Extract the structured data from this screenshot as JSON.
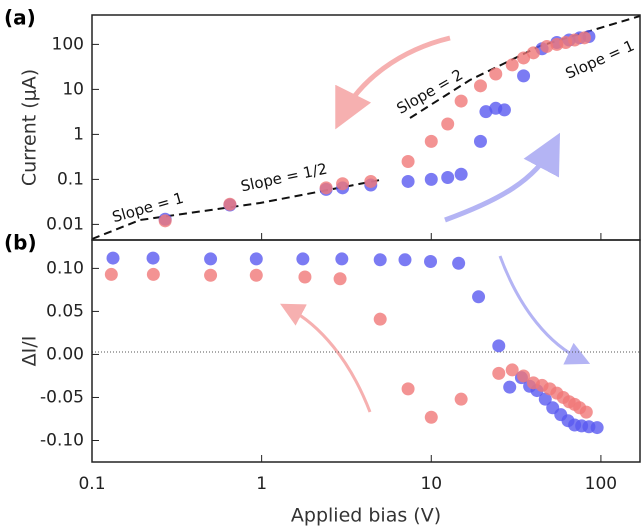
{
  "chart_data": [
    {
      "type": "scatter",
      "title": "(a)",
      "ylabel": "Current (μA)",
      "xscale": "log",
      "yscale": "log",
      "xlim": [
        0.1,
        170
      ],
      "xticks": [
        0.1,
        1,
        10,
        100
      ],
      "ylim": [
        0.0045,
        450
      ],
      "yticks": [
        0.01,
        0.1,
        1,
        10,
        100
      ],
      "annotations": [
        "Slope = 1",
        "Slope = 1/2",
        "Slope = 2",
        "Slope = 1"
      ],
      "series": [
        {
          "color": "#5a5af0",
          "x": [
            0.27,
            0.65,
            2.4,
            3.0,
            4.4,
            7.3,
            10,
            12.5,
            15,
            19.5,
            21,
            24,
            27,
            35,
            45,
            55,
            65,
            75,
            85
          ],
          "values": [
            0.013,
            0.027,
            0.06,
            0.065,
            0.075,
            0.09,
            0.1,
            0.11,
            0.13,
            0.7,
            3.2,
            3.8,
            3.5,
            20,
            80,
            110,
            125,
            140,
            150
          ]
        },
        {
          "color": "#f07878",
          "x": [
            0.27,
            0.65,
            2.4,
            3.0,
            4.4,
            7.3,
            10,
            12.5,
            15,
            19.5,
            24,
            30,
            35,
            40,
            48,
            55,
            62,
            70,
            80
          ],
          "values": [
            0.012,
            0.028,
            0.065,
            0.08,
            0.09,
            0.25,
            0.7,
            1.7,
            5.5,
            12,
            22,
            35,
            50,
            65,
            90,
            100,
            110,
            125,
            140
          ]
        }
      ]
    },
    {
      "type": "scatter",
      "title": "(b)",
      "ylabel": "ΔI/I",
      "xlabel": "Applied  bias (V)",
      "xscale": "log",
      "yscale": "linear",
      "xlim": [
        0.1,
        170
      ],
      "xticks": [
        0.1,
        1,
        10,
        100
      ],
      "ylim": [
        -0.125,
        0.133
      ],
      "yticks": [
        {
          "value": 0.1,
          "label": "0.10"
        },
        {
          "value": 0.05,
          "label": "0.05"
        },
        {
          "value": 0,
          "label": "0.00"
        },
        {
          "value": -0.05,
          "label": "-0.05"
        },
        {
          "value": -0.1,
          "label": "-0.10"
        }
      ],
      "series": [
        {
          "color": "#5a5af0",
          "x": [
            0.133,
            0.229,
            0.5,
            0.93,
            1.75,
            2.97,
            5.0,
            7.0,
            9.9,
            14.5,
            19,
            25,
            29,
            34,
            38,
            42,
            47,
            52,
            58,
            64,
            70,
            77,
            85,
            95
          ],
          "values": [
            0.112,
            0.112,
            0.111,
            0.111,
            0.111,
            0.111,
            0.11,
            0.11,
            0.108,
            0.106,
            0.067,
            0.01,
            -0.038,
            -0.027,
            -0.037,
            -0.042,
            -0.052,
            -0.062,
            -0.07,
            -0.077,
            -0.082,
            -0.083,
            -0.084,
            -0.085
          ]
        },
        {
          "color": "#f07878",
          "x": [
            0.13,
            0.23,
            0.5,
            0.93,
            1.8,
            2.9,
            5.0,
            7.3,
            10,
            15,
            25,
            30,
            35,
            40,
            45,
            50,
            55,
            60,
            65,
            70,
            75,
            82
          ],
          "values": [
            0.093,
            0.093,
            0.092,
            0.092,
            0.09,
            0.088,
            0.041,
            -0.04,
            -0.073,
            -0.052,
            -0.022,
            -0.018,
            -0.025,
            -0.033,
            -0.036,
            -0.04,
            -0.045,
            -0.05,
            -0.055,
            -0.058,
            -0.062,
            -0.067
          ]
        }
      ]
    }
  ]
}
